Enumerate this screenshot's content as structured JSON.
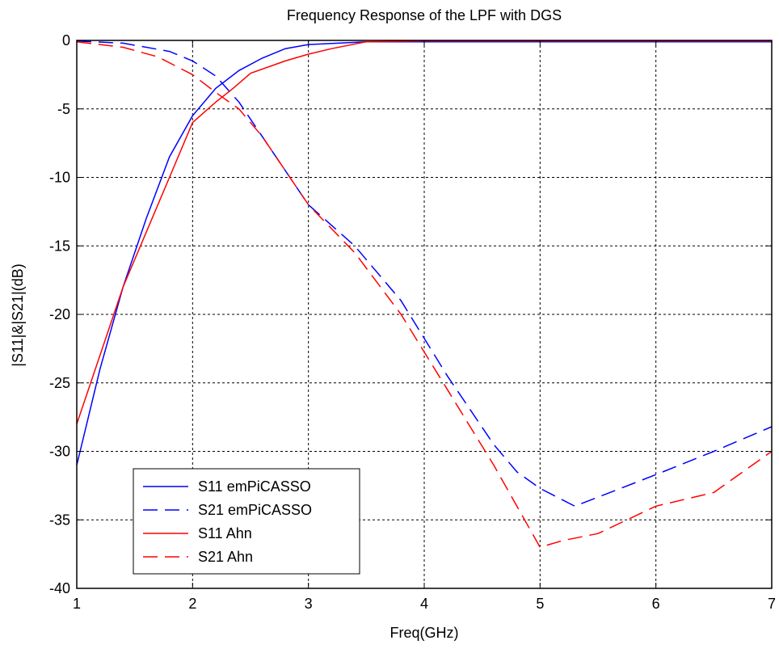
{
  "chart_data": {
    "type": "line",
    "title": "Frequency Response of the LPF with DGS",
    "xlabel": "Freq(GHz)",
    "ylabel": "|S11|&|S21|(dB)",
    "xlim": [
      1,
      7
    ],
    "ylim": [
      -40,
      0
    ],
    "xticks": [
      1,
      2,
      3,
      4,
      5,
      6,
      7
    ],
    "yticks": [
      0,
      -5,
      -10,
      -15,
      -20,
      -25,
      -30,
      -35,
      -40
    ],
    "grid": true,
    "legend_position": "bottom-left",
    "series": [
      {
        "name": "S11 emPiCASSO",
        "color": "#0000ff",
        "dash": "solid",
        "x": [
          1.0,
          1.2,
          1.4,
          1.6,
          1.8,
          2.0,
          2.2,
          2.4,
          2.6,
          2.8,
          3.0,
          3.5,
          4.0,
          4.5,
          5.0,
          5.5,
          6.0,
          6.5,
          7.0
        ],
        "y": [
          -31.0,
          -24.0,
          -18.0,
          -13.0,
          -8.5,
          -5.5,
          -3.5,
          -2.2,
          -1.3,
          -0.6,
          -0.3,
          -0.1,
          -0.1,
          -0.1,
          -0.1,
          -0.1,
          -0.1,
          -0.1,
          -0.1
        ]
      },
      {
        "name": "S21 emPiCASSO",
        "color": "#0000ff",
        "dash": "dashed",
        "x": [
          1.0,
          1.4,
          1.8,
          2.0,
          2.2,
          2.4,
          2.6,
          2.8,
          3.0,
          3.4,
          3.8,
          4.2,
          4.6,
          4.8,
          5.0,
          5.3,
          6.0,
          6.5,
          7.0
        ],
        "y": [
          -0.05,
          -0.2,
          -0.8,
          -1.5,
          -2.6,
          -4.5,
          -7.0,
          -9.5,
          -12.0,
          -15.0,
          -19.0,
          -24.5,
          -29.5,
          -31.5,
          -32.7,
          -34.0,
          -31.7,
          -30.0,
          -28.2
        ]
      },
      {
        "name": "S11 Ahn",
        "color": "#ff0000",
        "dash": "solid",
        "x": [
          1.0,
          1.2,
          1.4,
          1.6,
          1.8,
          2.0,
          2.2,
          2.35,
          2.5,
          2.8,
          3.0,
          3.2,
          3.5,
          4.0,
          5.0,
          6.0,
          7.0
        ],
        "y": [
          -28.0,
          -23.0,
          -18.0,
          -14.0,
          -10.0,
          -6.0,
          -4.5,
          -3.5,
          -2.4,
          -1.5,
          -1.0,
          -0.6,
          -0.1,
          -0.05,
          -0.05,
          -0.05,
          -0.05
        ]
      },
      {
        "name": "S21 Ahn",
        "color": "#ff0000",
        "dash": "dashed",
        "x": [
          1.0,
          1.4,
          1.7,
          2.0,
          2.2,
          2.4,
          2.6,
          2.8,
          3.0,
          3.4,
          3.8,
          4.2,
          4.6,
          5.0,
          5.2,
          5.5,
          6.0,
          6.5,
          7.0
        ],
        "y": [
          -0.1,
          -0.5,
          -1.2,
          -2.5,
          -3.8,
          -5.0,
          -7.0,
          -9.5,
          -12.0,
          -15.5,
          -20.0,
          -25.5,
          -31.0,
          -37.0,
          -36.5,
          -36.0,
          -34.0,
          -33.0,
          -30.0
        ]
      }
    ]
  }
}
